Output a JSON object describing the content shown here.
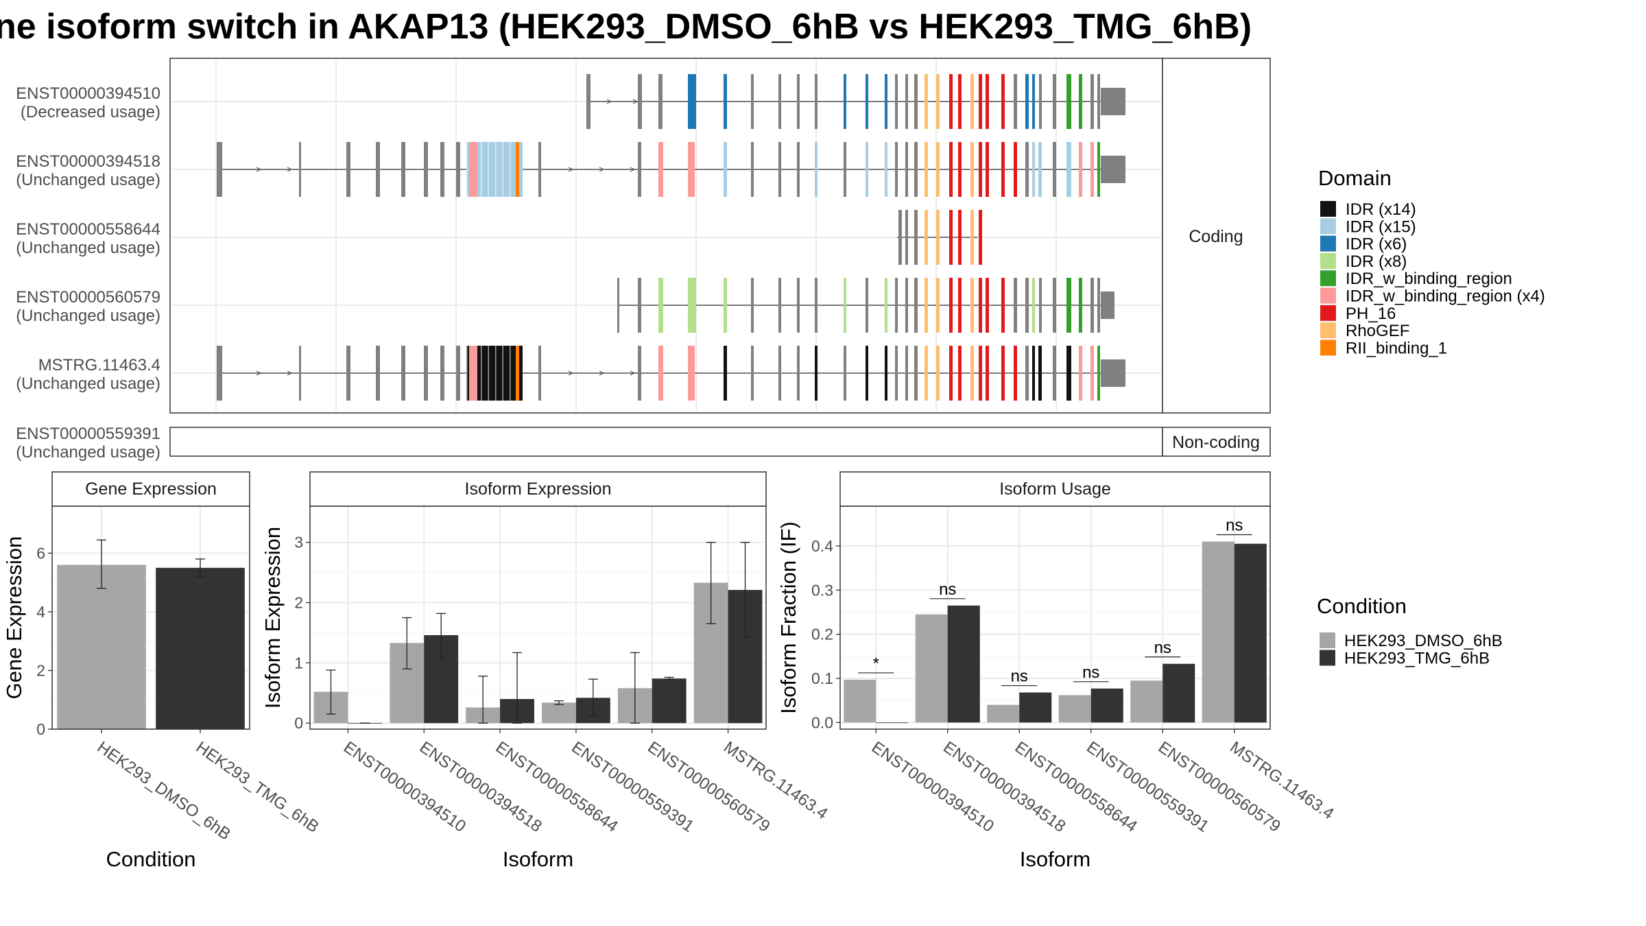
{
  "title": "ne isoform switch in AKAP13 (HEK293_DMSO_6hB vs HEK293_TMG_6hB)",
  "colors": {
    "exon_default": "#808080",
    "panel_border": "#333333",
    "grid": "#ebebeb",
    "cond_a": "#a6a6a6",
    "cond_b": "#333333"
  },
  "structure": {
    "coding_label": "Coding",
    "noncoding_label": "Non-coding",
    "transcripts": [
      {
        "id": "ENST00000394510",
        "usage": "(Decreased usage)",
        "group": "coding"
      },
      {
        "id": "ENST00000394518",
        "usage": "(Unchanged usage)",
        "group": "coding"
      },
      {
        "id": "ENST00000558644",
        "usage": "(Unchanged usage)",
        "group": "coding"
      },
      {
        "id": "ENST00000560579",
        "usage": "(Unchanged usage)",
        "group": "coding"
      },
      {
        "id": "MSTRG.11463.4",
        "usage": "(Unchanged usage)",
        "group": "coding"
      },
      {
        "id": "ENST00000559391",
        "usage": "(Unchanged usage)",
        "group": "noncoding"
      }
    ]
  },
  "legend_domain": {
    "title": "Domain",
    "items": [
      {
        "label": "IDR (x14)",
        "color": "#111111"
      },
      {
        "label": "IDR (x15)",
        "color": "#a6cee3"
      },
      {
        "label": "IDR (x6)",
        "color": "#1f78b4"
      },
      {
        "label": "IDR (x8)",
        "color": "#b2df8a"
      },
      {
        "label": "IDR_w_binding_region",
        "color": "#33a02c"
      },
      {
        "label": "IDR_w_binding_region (x4)",
        "color": "#fb9a99"
      },
      {
        "label": "PH_16",
        "color": "#e31a1c"
      },
      {
        "label": "RhoGEF",
        "color": "#fdbf6f"
      },
      {
        "label": "RII_binding_1",
        "color": "#ff7f00"
      }
    ]
  },
  "legend_condition": {
    "title": "Condition",
    "items": [
      {
        "label": "HEK293_DMSO_6hB",
        "color": "#a6a6a6"
      },
      {
        "label": "HEK293_TMG_6hB",
        "color": "#333333"
      }
    ]
  },
  "chart_data": [
    {
      "type": "bar",
      "title": "Gene Expression",
      "xlabel": "Condition",
      "ylabel": "Gene Expression",
      "categories": [
        "HEK293_DMSO_6hB",
        "HEK293_TMG_6hB"
      ],
      "values": [
        5.6,
        5.5
      ],
      "error_low": [
        4.8,
        5.2
      ],
      "error_high": [
        6.45,
        5.8
      ],
      "ylim": [
        0,
        7.6
      ],
      "yticks": [
        0,
        2,
        4,
        6
      ]
    },
    {
      "type": "bar",
      "title": "Isoform Expression",
      "xlabel": "Isoform",
      "ylabel": "Isoform Expression",
      "categories": [
        "ENST00000394510",
        "ENST00000394518",
        "ENST00000558644",
        "ENST00000559391",
        "ENST00000560579",
        "MSTRG.11463.4"
      ],
      "series": [
        {
          "name": "HEK293_DMSO_6hB",
          "values": [
            0.52,
            1.33,
            0.26,
            0.34,
            0.58,
            2.33
          ],
          "error_low": [
            0.15,
            0.9,
            0.0,
            0.31,
            0.0,
            1.65
          ],
          "error_high": [
            0.88,
            1.75,
            0.78,
            0.37,
            1.17,
            3.0
          ]
        },
        {
          "name": "HEK293_TMG_6hB",
          "values": [
            0.0,
            1.46,
            0.4,
            0.42,
            0.74,
            2.21
          ],
          "error_low": [
            0.0,
            1.08,
            0.0,
            0.12,
            0.72,
            1.43
          ],
          "error_high": [
            0.0,
            1.82,
            1.17,
            0.73,
            0.76,
            3.0
          ]
        }
      ],
      "ylim": [
        -0.1,
        3.6
      ],
      "yticks": [
        0,
        1,
        2,
        3
      ]
    },
    {
      "type": "bar",
      "title": "Isoform Usage",
      "xlabel": "Isoform",
      "ylabel": "Isoform Fraction (IF)",
      "categories": [
        "ENST00000394510",
        "ENST00000394518",
        "ENST00000558644",
        "ENST00000559391",
        "ENST00000560579",
        "MSTRG.11463.4"
      ],
      "series": [
        {
          "name": "HEK293_DMSO_6hB",
          "values": [
            0.097,
            0.245,
            0.04,
            0.062,
            0.095,
            0.41
          ]
        },
        {
          "name": "HEK293_TMG_6hB",
          "values": [
            0.0,
            0.265,
            0.068,
            0.077,
            0.133,
            0.405
          ]
        }
      ],
      "significance": [
        "*",
        "ns",
        "ns",
        "ns",
        "ns",
        "ns"
      ],
      "ylim": [
        -0.015,
        0.49
      ],
      "yticks": [
        0.0,
        0.1,
        0.2,
        0.3,
        0.4
      ],
      "ytick_labels": [
        "0.0",
        "0.1",
        "0.2",
        "0.3",
        "0.4"
      ]
    }
  ]
}
